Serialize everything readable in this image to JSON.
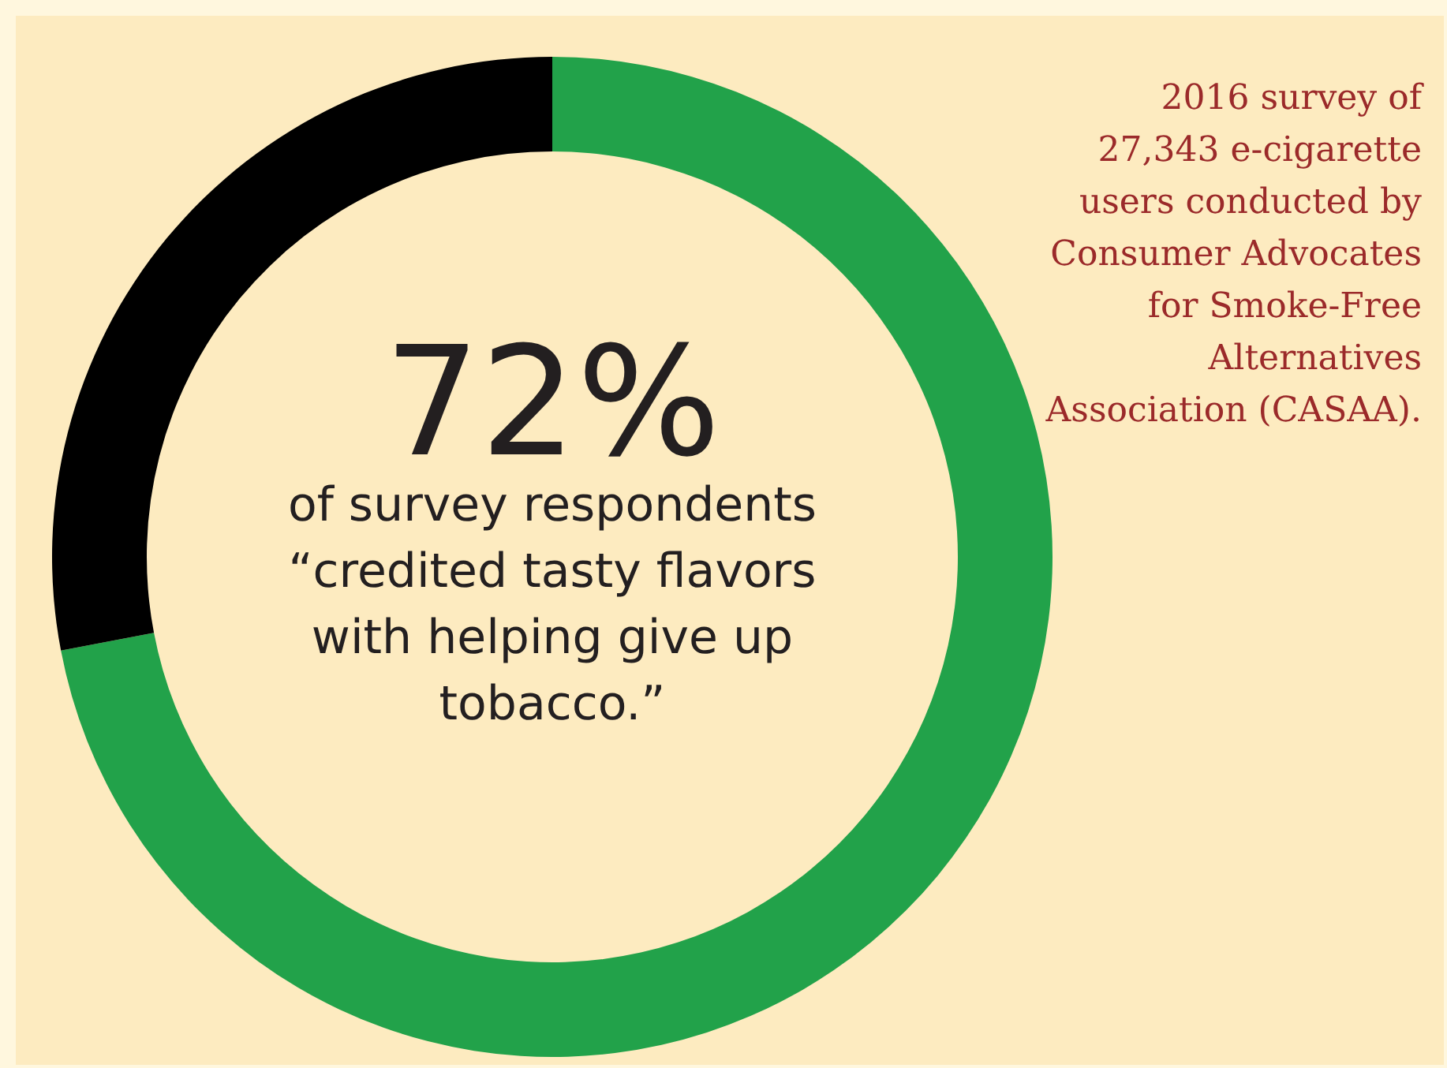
{
  "chart_data": {
    "type": "donut",
    "categories": [
      null,
      null
    ],
    "values": [
      72,
      28
    ],
    "colors": [
      "#22a24a",
      "#000000"
    ],
    "annotations": [
      "72%",
      "of survey respondents “credited tasty flavors with helping give up tobacco.”",
      "2016 survey of 27,343 e-cigarette users conducted by Consumer Advocates for Smoke-Free Alternatives Association (CASAA)."
    ]
  }
}
